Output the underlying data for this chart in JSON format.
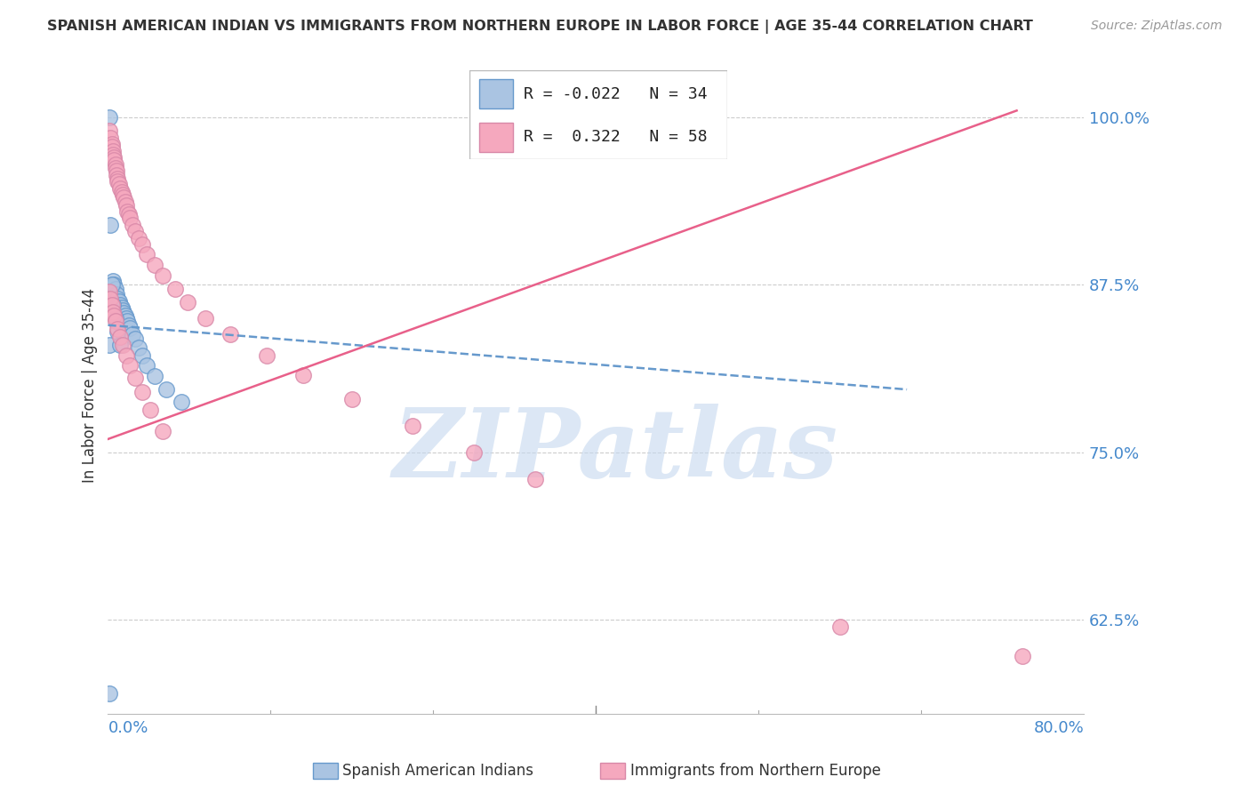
{
  "title": "SPANISH AMERICAN INDIAN VS IMMIGRANTS FROM NORTHERN EUROPE IN LABOR FORCE | AGE 35-44 CORRELATION CHART",
  "source": "Source: ZipAtlas.com",
  "ylabel": "In Labor Force | Age 35-44",
  "yticks": [
    0.625,
    0.75,
    0.875,
    1.0
  ],
  "ytick_labels": [
    "62.5%",
    "75.0%",
    "87.5%",
    "100.0%"
  ],
  "xmin": 0.0,
  "xmax": 0.8,
  "ymin": 0.555,
  "ymax": 1.045,
  "legend_R1": "-0.022",
  "legend_N1": "34",
  "legend_R2": "0.322",
  "legend_N2": "58",
  "legend_label1": "Spanish American Indians",
  "legend_label2": "Immigrants from Northern Europe",
  "color_blue": "#aac4e2",
  "color_blue_line": "#6699cc",
  "color_pink": "#f5a8be",
  "color_pink_line": "#e8608a",
  "watermark": "ZIPatlas",
  "watermark_color": "#c5d8ef",
  "blue_x": [
    0.001,
    0.002,
    0.003,
    0.004,
    0.005,
    0.006,
    0.007,
    0.008,
    0.009,
    0.01,
    0.011,
    0.012,
    0.013,
    0.014,
    0.015,
    0.016,
    0.017,
    0.018,
    0.02,
    0.022,
    0.025,
    0.028,
    0.032,
    0.038,
    0.048,
    0.06,
    0.001,
    0.002,
    0.003,
    0.004,
    0.006,
    0.008,
    0.01,
    0.001
  ],
  "blue_y": [
    0.83,
    0.87,
    0.875,
    0.878,
    0.875,
    0.872,
    0.868,
    0.865,
    0.863,
    0.86,
    0.858,
    0.856,
    0.854,
    0.852,
    0.85,
    0.848,
    0.845,
    0.843,
    0.838,
    0.835,
    0.828,
    0.822,
    0.815,
    0.807,
    0.797,
    0.788,
    1.0,
    0.92,
    0.875,
    0.86,
    0.85,
    0.84,
    0.83,
    0.57
  ],
  "pink_x": [
    0.001,
    0.002,
    0.003,
    0.003,
    0.004,
    0.004,
    0.005,
    0.005,
    0.006,
    0.006,
    0.007,
    0.007,
    0.008,
    0.008,
    0.009,
    0.01,
    0.011,
    0.012,
    0.013,
    0.014,
    0.015,
    0.016,
    0.017,
    0.018,
    0.02,
    0.022,
    0.025,
    0.028,
    0.032,
    0.038,
    0.045,
    0.055,
    0.065,
    0.08,
    0.1,
    0.13,
    0.16,
    0.2,
    0.25,
    0.3,
    0.35,
    0.001,
    0.002,
    0.003,
    0.004,
    0.005,
    0.006,
    0.008,
    0.01,
    0.012,
    0.015,
    0.018,
    0.022,
    0.028,
    0.035,
    0.045,
    0.6,
    0.75
  ],
  "pink_y": [
    0.99,
    0.985,
    0.98,
    0.978,
    0.975,
    0.972,
    0.97,
    0.968,
    0.965,
    0.962,
    0.96,
    0.957,
    0.954,
    0.952,
    0.95,
    0.947,
    0.944,
    0.942,
    0.94,
    0.937,
    0.934,
    0.93,
    0.928,
    0.925,
    0.92,
    0.915,
    0.91,
    0.905,
    0.898,
    0.89,
    0.882,
    0.872,
    0.862,
    0.85,
    0.838,
    0.822,
    0.808,
    0.79,
    0.77,
    0.75,
    0.73,
    0.87,
    0.865,
    0.86,
    0.855,
    0.852,
    0.848,
    0.842,
    0.836,
    0.83,
    0.822,
    0.815,
    0.806,
    0.795,
    0.782,
    0.766,
    0.62,
    0.598
  ],
  "blue_line_x": [
    0.0,
    0.655
  ],
  "blue_line_y": [
    0.845,
    0.797
  ],
  "pink_line_x": [
    0.0,
    0.745
  ],
  "pink_line_y": [
    0.76,
    1.005
  ]
}
